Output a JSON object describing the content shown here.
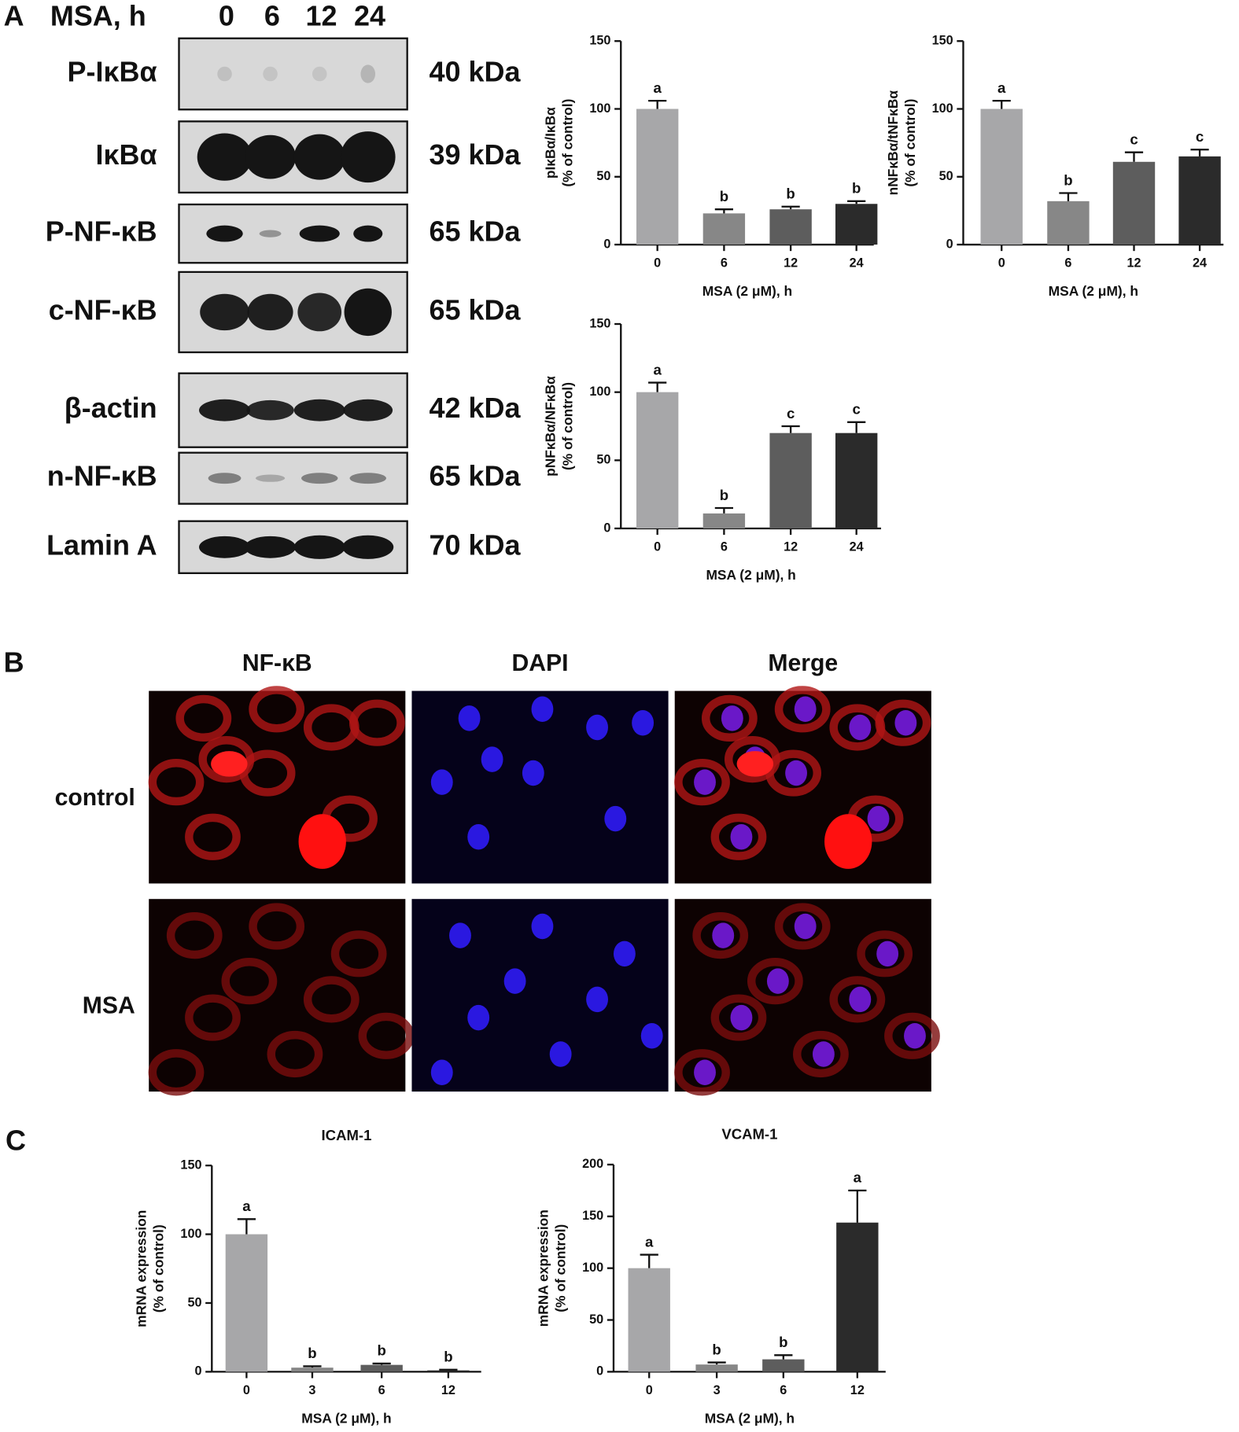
{
  "panel_labels": [
    "A",
    "B",
    "C"
  ],
  "blot": {
    "header": "MSA, h",
    "lanes": [
      "0",
      "6",
      "12",
      "24"
    ],
    "rows": [
      {
        "protein": "P-IκBα",
        "size": "40 kDa"
      },
      {
        "protein": "IκBα",
        "size": "39 kDa"
      },
      {
        "protein": "P-NF-κB",
        "size": "65 kDa"
      },
      {
        "protein": "c-NF-κB",
        "size": "65 kDa"
      },
      {
        "protein": "β-actin",
        "size": "42 kDa"
      },
      {
        "protein": "n-NF-κB",
        "size": "65 kDa"
      },
      {
        "protein": "Lamin A",
        "size": "70 kDa"
      }
    ]
  },
  "microscopy": {
    "columns": [
      "NF-κB",
      "DAPI",
      "Merge"
    ],
    "rows": [
      "control",
      "MSA"
    ]
  },
  "chart_data": [
    {
      "type": "bar",
      "ylabel": [
        "pIκBα/IκBα",
        "(% of control)"
      ],
      "xlabel": "MSA (2 μM), h",
      "categories": [
        "0",
        "6",
        "12",
        "24"
      ],
      "values": [
        100,
        23,
        26,
        30
      ],
      "errors": [
        6,
        3,
        2,
        2
      ],
      "letters": [
        "a",
        "b",
        "b",
        "b"
      ],
      "colors": [
        "#a7a7a9",
        "#878787",
        "#5d5d5d",
        "#2b2b2b"
      ],
      "ylim": [
        0,
        150
      ],
      "yticks": [
        0,
        50,
        100,
        150
      ]
    },
    {
      "type": "bar",
      "ylabel": [
        "nNFκBα/tNFκBα",
        "(% of control)"
      ],
      "xlabel": "MSA (2 μM), h",
      "categories": [
        "0",
        "6",
        "12",
        "24"
      ],
      "values": [
        100,
        32,
        61,
        65
      ],
      "errors": [
        6,
        6,
        7,
        5
      ],
      "letters": [
        "a",
        "b",
        "c",
        "c"
      ],
      "colors": [
        "#a7a7a9",
        "#878787",
        "#5d5d5d",
        "#2b2b2b"
      ],
      "ylim": [
        0,
        150
      ],
      "yticks": [
        0,
        50,
        100,
        150
      ]
    },
    {
      "type": "bar",
      "ylabel": [
        "pNFκBα/NFκBα",
        "(% of control)"
      ],
      "xlabel": "MSA (2 μM), h",
      "categories": [
        "0",
        "6",
        "12",
        "24"
      ],
      "values": [
        100,
        11,
        70,
        70
      ],
      "errors": [
        7,
        4,
        5,
        8
      ],
      "letters": [
        "a",
        "b",
        "c",
        "c"
      ],
      "colors": [
        "#a7a7a9",
        "#878787",
        "#5d5d5d",
        "#2b2b2b"
      ],
      "ylim": [
        0,
        150
      ],
      "yticks": [
        0,
        50,
        100,
        150
      ]
    },
    {
      "type": "bar",
      "title": "ICAM-1",
      "ylabel": [
        "mRNA expression",
        "(% of control)"
      ],
      "xlabel": "MSA (2 μM), h",
      "categories": [
        "0",
        "3",
        "6",
        "12"
      ],
      "values": [
        100,
        3,
        5,
        1
      ],
      "errors": [
        11,
        1,
        1,
        0.5
      ],
      "letters": [
        "a",
        "b",
        "b",
        "b"
      ],
      "colors": [
        "#a7a7a9",
        "#878787",
        "#5d5d5d",
        "#2b2b2b"
      ],
      "ylim": [
        0,
        150
      ],
      "yticks": [
        0,
        50,
        100,
        150
      ]
    },
    {
      "type": "bar",
      "title": "VCAM-1",
      "ylabel": [
        "mRNA expression",
        "(% of control)"
      ],
      "xlabel": "MSA (2 μM), h",
      "categories": [
        "0",
        "3",
        "6",
        "12"
      ],
      "values": [
        100,
        7,
        12,
        144
      ],
      "errors": [
        13,
        2,
        4,
        31
      ],
      "letters": [
        "a",
        "b",
        "b",
        "a"
      ],
      "colors": [
        "#a7a7a9",
        "#878787",
        "#5d5d5d",
        "#2b2b2b"
      ],
      "ylim": [
        0,
        200
      ],
      "yticks": [
        0,
        50,
        100,
        150,
        200
      ]
    }
  ]
}
